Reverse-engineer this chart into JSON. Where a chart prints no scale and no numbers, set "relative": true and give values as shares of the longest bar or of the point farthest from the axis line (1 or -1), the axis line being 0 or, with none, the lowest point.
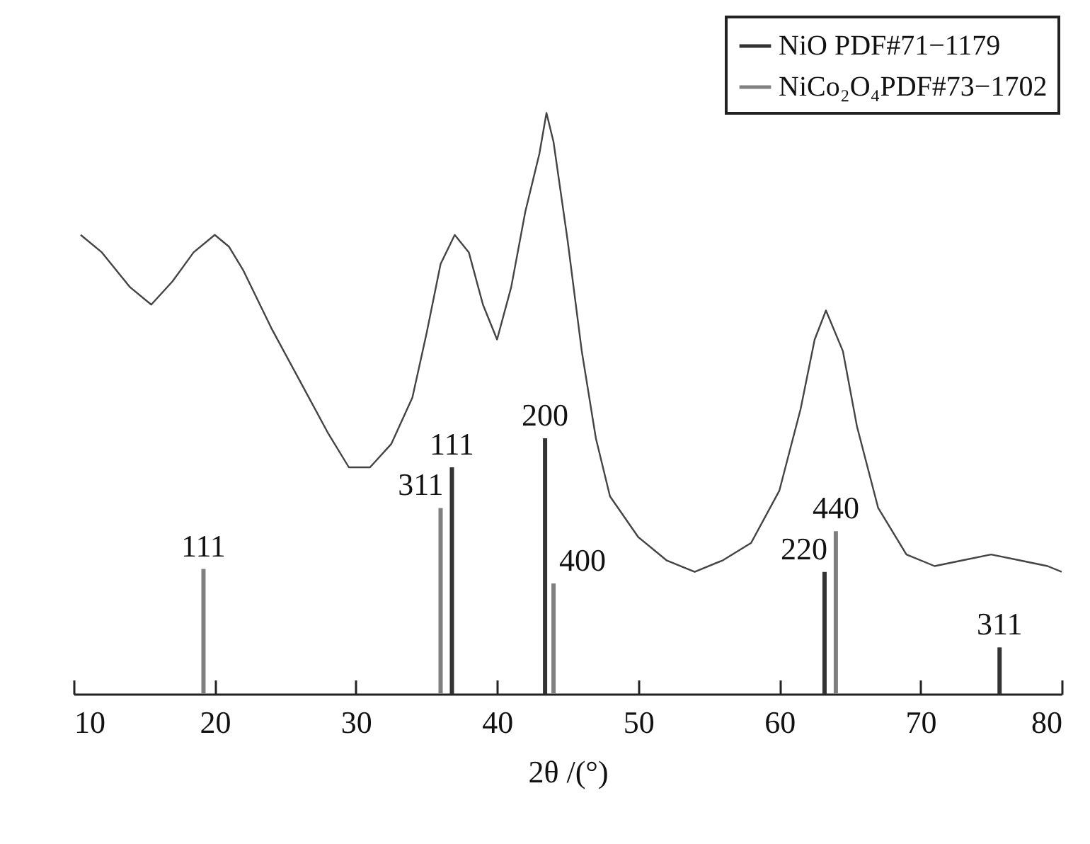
{
  "chart_data": {
    "type": "line",
    "relative": true,
    "xlabel": "2θ /(°)",
    "xlim": [
      10,
      80
    ],
    "xticks": [
      10,
      20,
      30,
      40,
      50,
      60,
      70,
      80
    ],
    "grid": false,
    "legend": "top right",
    "marker": "none",
    "series": [
      {
        "color": "#444444",
        "x": [
          10.5,
          12,
          14,
          15.5,
          17,
          18.5,
          20,
          21,
          22,
          24,
          26,
          28,
          29.5,
          31,
          32.5,
          34,
          35,
          36,
          37,
          38,
          39,
          40,
          41,
          42,
          43,
          43.5,
          44,
          45,
          46,
          47,
          48,
          50,
          52,
          54,
          56,
          58,
          60,
          61.5,
          62.5,
          63.3,
          64.5,
          65.5,
          67,
          69,
          71,
          73,
          75,
          77,
          79,
          80
        ],
        "values": [
          0.79,
          0.76,
          0.7,
          0.67,
          0.71,
          0.76,
          0.79,
          0.77,
          0.73,
          0.63,
          0.54,
          0.45,
          0.39,
          0.39,
          0.43,
          0.51,
          0.62,
          0.74,
          0.79,
          0.76,
          0.67,
          0.61,
          0.7,
          0.83,
          0.93,
          1,
          0.95,
          0.78,
          0.59,
          0.44,
          0.34,
          0.27,
          0.23,
          0.21,
          0.23,
          0.26,
          0.35,
          0.49,
          0.61,
          0.66,
          0.59,
          0.46,
          0.32,
          0.24,
          0.22,
          0.23,
          0.24,
          0.23,
          0.22,
          0.21
        ]
      },
      {
        "type": "bar",
        "name": "NiO PDF#71−1179",
        "color": "#333333",
        "x": [
          36.8,
          43.4,
          63.2,
          75.6
        ],
        "values": [
          0.39,
          0.44,
          0.21,
          0.08
        ]
      },
      {
        "type": "bar",
        "name": "NiCo₂O₄PDF#73−1702",
        "color": "#808080",
        "x": [
          19.2,
          36.0,
          44.0,
          64.0
        ],
        "values": [
          0.215,
          0.32,
          0.19,
          0.28
        ]
      }
    ],
    "annotations": [
      {
        "text": "111",
        "x": 36.8,
        "y": 0.39
      },
      {
        "text": "200",
        "x": 43.4,
        "y": 0.44
      },
      {
        "text": "220",
        "x": 63.2,
        "y": 0.21
      },
      {
        "text": "311",
        "x": 75.6,
        "y": 0.08
      },
      {
        "text": "111",
        "x": 19.2,
        "y": 0.215
      },
      {
        "text": "311",
        "x": 36.0,
        "y": 0.32
      },
      {
        "text": "400",
        "x": 44.0,
        "y": 0.19
      },
      {
        "text": "440",
        "x": 64.0,
        "y": 0.28
      }
    ]
  }
}
